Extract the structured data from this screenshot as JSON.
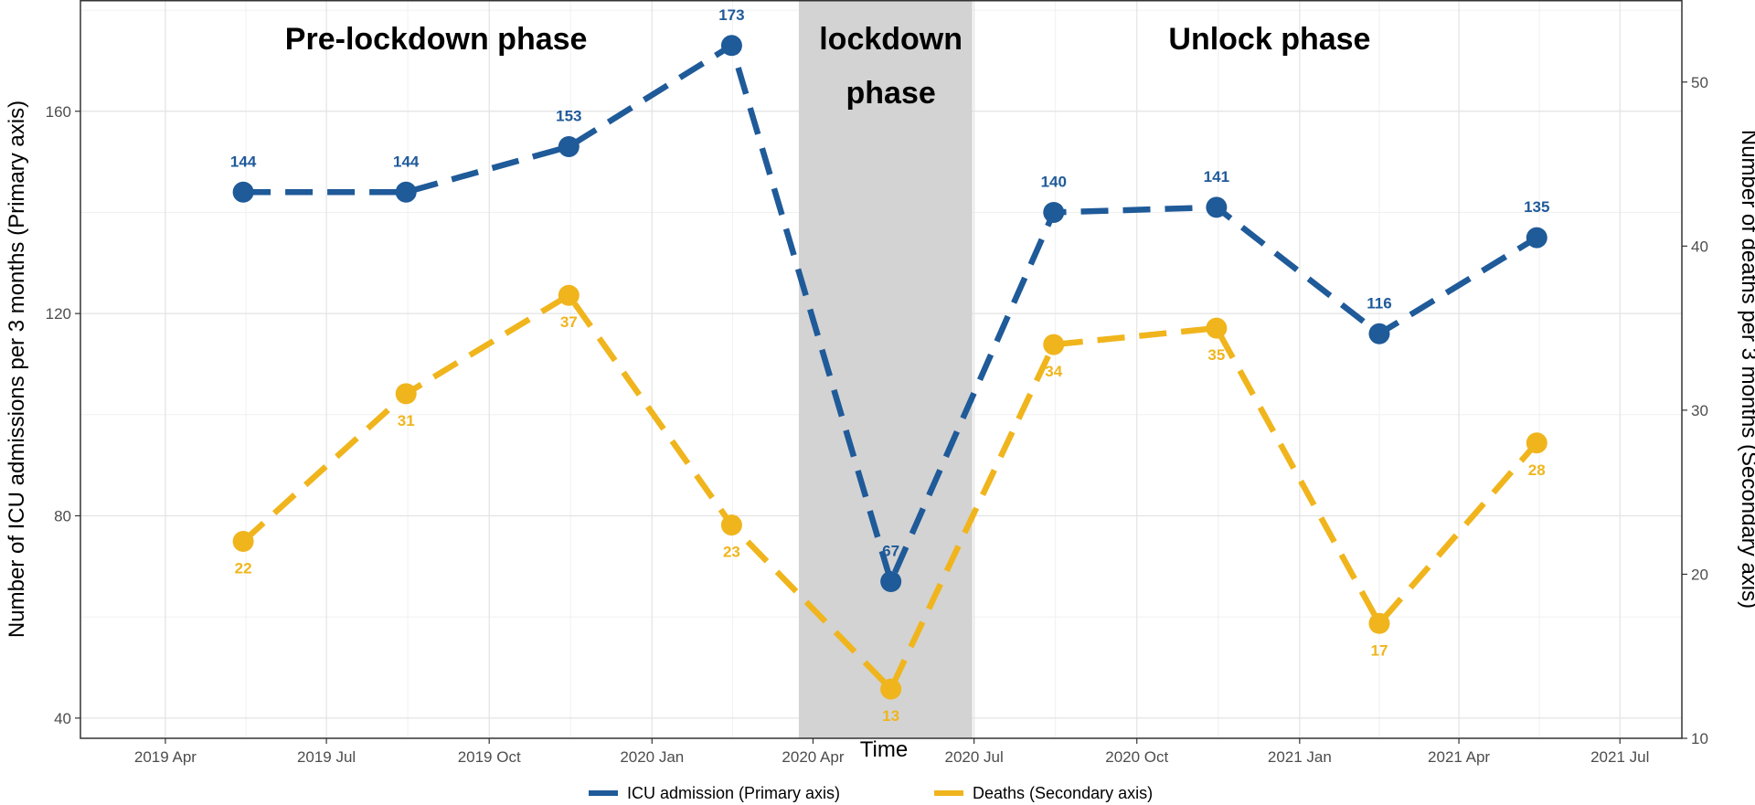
{
  "chart_data": {
    "type": "line",
    "xlabel": "Time",
    "ylabel_primary": "Number of ICU admissions per 3 months (Primary axis)",
    "ylabel_secondary": "Number of deaths per 3 months (Secondary axis)",
    "x_ticks": [
      "2019-04-01",
      "2019-07-01",
      "2019-10-01",
      "2020-01-01",
      "2020-04-01",
      "2020-07-01",
      "2020-10-01",
      "2021-01-01",
      "2021-04-01",
      "2021-07-01"
    ],
    "x_tick_labels": [
      "2019 Apr",
      "2019 Jul",
      "2019 Oct",
      "2020 Jan",
      "2020 Apr",
      "2020 Jul",
      "2020 Oct",
      "2021 Jan",
      "2021 Apr",
      "2021 Jul"
    ],
    "xlim": [
      "2019-02-12",
      "2021-08-05"
    ],
    "ylim_primary": [
      36,
      182
    ],
    "y_ticks_primary": [
      40,
      80,
      120,
      160
    ],
    "ylim_secondary": [
      10,
      55
    ],
    "y_ticks_secondary": [
      10,
      20,
      30,
      40,
      50
    ],
    "grid": true,
    "legend_position": "bottom",
    "phases": [
      {
        "label_lines": [
          "Pre-lockdown phase"
        ],
        "label_x": "2019-09-01"
      },
      {
        "label_lines": [
          "lockdown",
          "phase"
        ],
        "label_x": "2020-05-15",
        "shade_start": "2020-03-24",
        "shade_end": "2020-06-30"
      },
      {
        "label_lines": [
          "Unlock phase"
        ],
        "label_x": "2020-12-15"
      }
    ],
    "series": [
      {
        "name": "ICU admission (Primary axis)",
        "axis": "primary",
        "color": "#1f5a99",
        "x": [
          "2019-05-15",
          "2019-08-15",
          "2019-11-15",
          "2020-02-15",
          "2020-05-15",
          "2020-08-15",
          "2020-11-15",
          "2021-02-15",
          "2021-05-15"
        ],
        "values": [
          144,
          144,
          153,
          173,
          67,
          140,
          141,
          116,
          135
        ]
      },
      {
        "name": "Deaths (Secondary axis)",
        "axis": "secondary",
        "color": "#f0b51d",
        "x": [
          "2019-05-15",
          "2019-08-15",
          "2019-11-15",
          "2020-02-15",
          "2020-05-15",
          "2020-08-15",
          "2020-11-15",
          "2021-02-15",
          "2021-05-15"
        ],
        "values": [
          22,
          31,
          37,
          23,
          13,
          34,
          35,
          17,
          28
        ]
      }
    ]
  }
}
